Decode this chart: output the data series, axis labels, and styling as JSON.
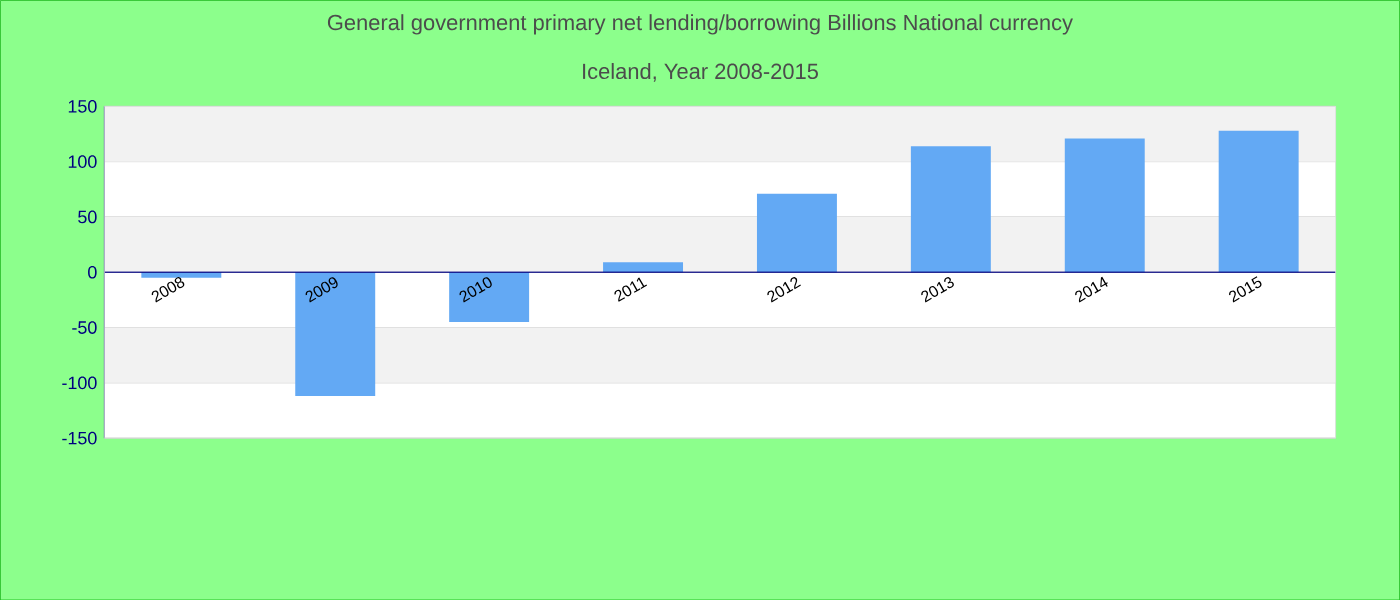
{
  "chart_data": {
    "type": "bar",
    "title": "General government primary net lending/borrowing Billions National currency",
    "subtitle": "Iceland, Year 2008-2015",
    "categories": [
      "2008",
      "2009",
      "2010",
      "2011",
      "2012",
      "2013",
      "2014",
      "2015"
    ],
    "values": [
      -5,
      -112,
      -45,
      9,
      71,
      114,
      121,
      128
    ],
    "color": "#63a9f4",
    "ylim": [
      -150,
      150
    ],
    "yticks": [
      -150,
      -100,
      -50,
      0,
      50,
      100,
      150
    ],
    "grid": "y"
  }
}
